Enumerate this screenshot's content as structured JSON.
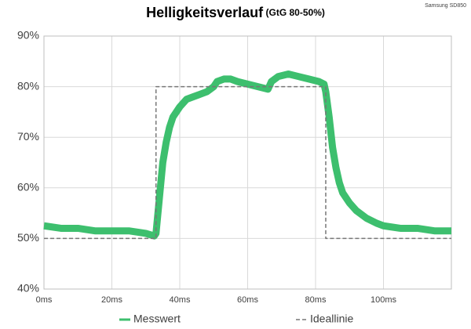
{
  "chart_data": {
    "type": "line",
    "title": "Helligkeitsverlauf",
    "subtitle": "(GtG 80-50%)",
    "annotation": "Samsung SD850",
    "xlim": [
      0,
      120
    ],
    "ylim": [
      40,
      90
    ],
    "xticks": [
      {
        "value": 0,
        "label": "0ms"
      },
      {
        "value": 20,
        "label": "20ms"
      },
      {
        "value": 40,
        "label": "40ms"
      },
      {
        "value": 60,
        "label": "60ms"
      },
      {
        "value": 80,
        "label": "80ms"
      },
      {
        "value": 100,
        "label": "100ms"
      }
    ],
    "yticks": [
      {
        "value": 40,
        "label": "40%"
      },
      {
        "value": 50,
        "label": "50%"
      },
      {
        "value": 60,
        "label": "60%"
      },
      {
        "value": 70,
        "label": "70%"
      },
      {
        "value": 80,
        "label": "80%"
      },
      {
        "value": 90,
        "label": "90%"
      }
    ],
    "grid": true,
    "legend": "bottom",
    "series": [
      {
        "name": "Messwert",
        "color": "#3dbf6e",
        "dashed": false,
        "x": [
          0,
          5,
          10,
          15,
          20,
          25,
          30,
          32.5,
          33,
          34,
          35,
          36,
          37,
          38,
          40,
          42,
          44,
          46,
          48,
          50,
          51,
          53,
          55,
          57,
          60,
          63,
          66,
          67,
          69,
          72,
          75,
          78,
          81,
          82.5,
          83,
          84,
          85,
          86,
          87,
          88,
          90,
          92,
          95,
          98,
          100,
          105,
          110,
          115,
          120
        ],
        "values": [
          52.5,
          52,
          52,
          51.5,
          51.5,
          51.5,
          51,
          50.5,
          51,
          58,
          65,
          69,
          72,
          74,
          76,
          77.5,
          78,
          78.5,
          79,
          80,
          81,
          81.5,
          81.5,
          81,
          80.5,
          80,
          79.5,
          81,
          82,
          82.5,
          82,
          81.5,
          81,
          80.5,
          79,
          74,
          68,
          64,
          61,
          59,
          57,
          55.5,
          54,
          53,
          52.5,
          52,
          52,
          51.5,
          51.5
        ]
      },
      {
        "name": "Ideallinie",
        "color": "#777777",
        "dashed": true,
        "x": [
          0,
          33,
          33,
          83,
          83,
          120
        ],
        "values": [
          50,
          50,
          80,
          80,
          50,
          50
        ]
      }
    ]
  }
}
